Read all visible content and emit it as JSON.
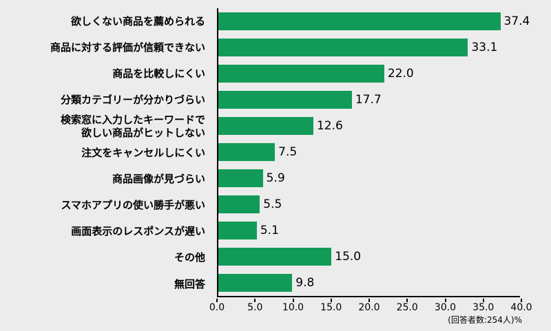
{
  "chart_data": {
    "type": "bar",
    "orientation": "horizontal",
    "title": "",
    "categories": [
      "欲しくない商品を薦められる",
      "商品に対する評価が信頼できない",
      "商品を比較しにくい",
      "分類カテゴリーが分かりづらい",
      "検索窓に入力したキーワードで\n欲しい商品がヒットしない",
      "注文をキャンセルしにくい",
      "商品画像が見づらい",
      "スマホアプリの使い勝手が悪い",
      "画面表示のレスポンスが遅い",
      "その他",
      "無回答"
    ],
    "values": [
      37.4,
      33.1,
      22.0,
      17.7,
      12.6,
      7.5,
      5.9,
      5.5,
      5.1,
      15.0,
      9.8
    ],
    "value_labels": [
      "37.4",
      "33.1",
      "22.0",
      "17.7",
      "12.6",
      "7.5",
      "5.9",
      "5.5",
      "5.1",
      "15.0",
      "9.8"
    ],
    "xlim": [
      0,
      40
    ],
    "x_ticks": [
      "0.0",
      "5.0",
      "10.0",
      "15.0",
      "20.0",
      "25.0",
      "30.0",
      "35.0",
      "40.0"
    ],
    "footnote": "(回答者数:254人)%",
    "bar_color": "#129b58",
    "background_color": "#ececec",
    "axis_color": "#000000",
    "grid": false,
    "legend": false
  }
}
